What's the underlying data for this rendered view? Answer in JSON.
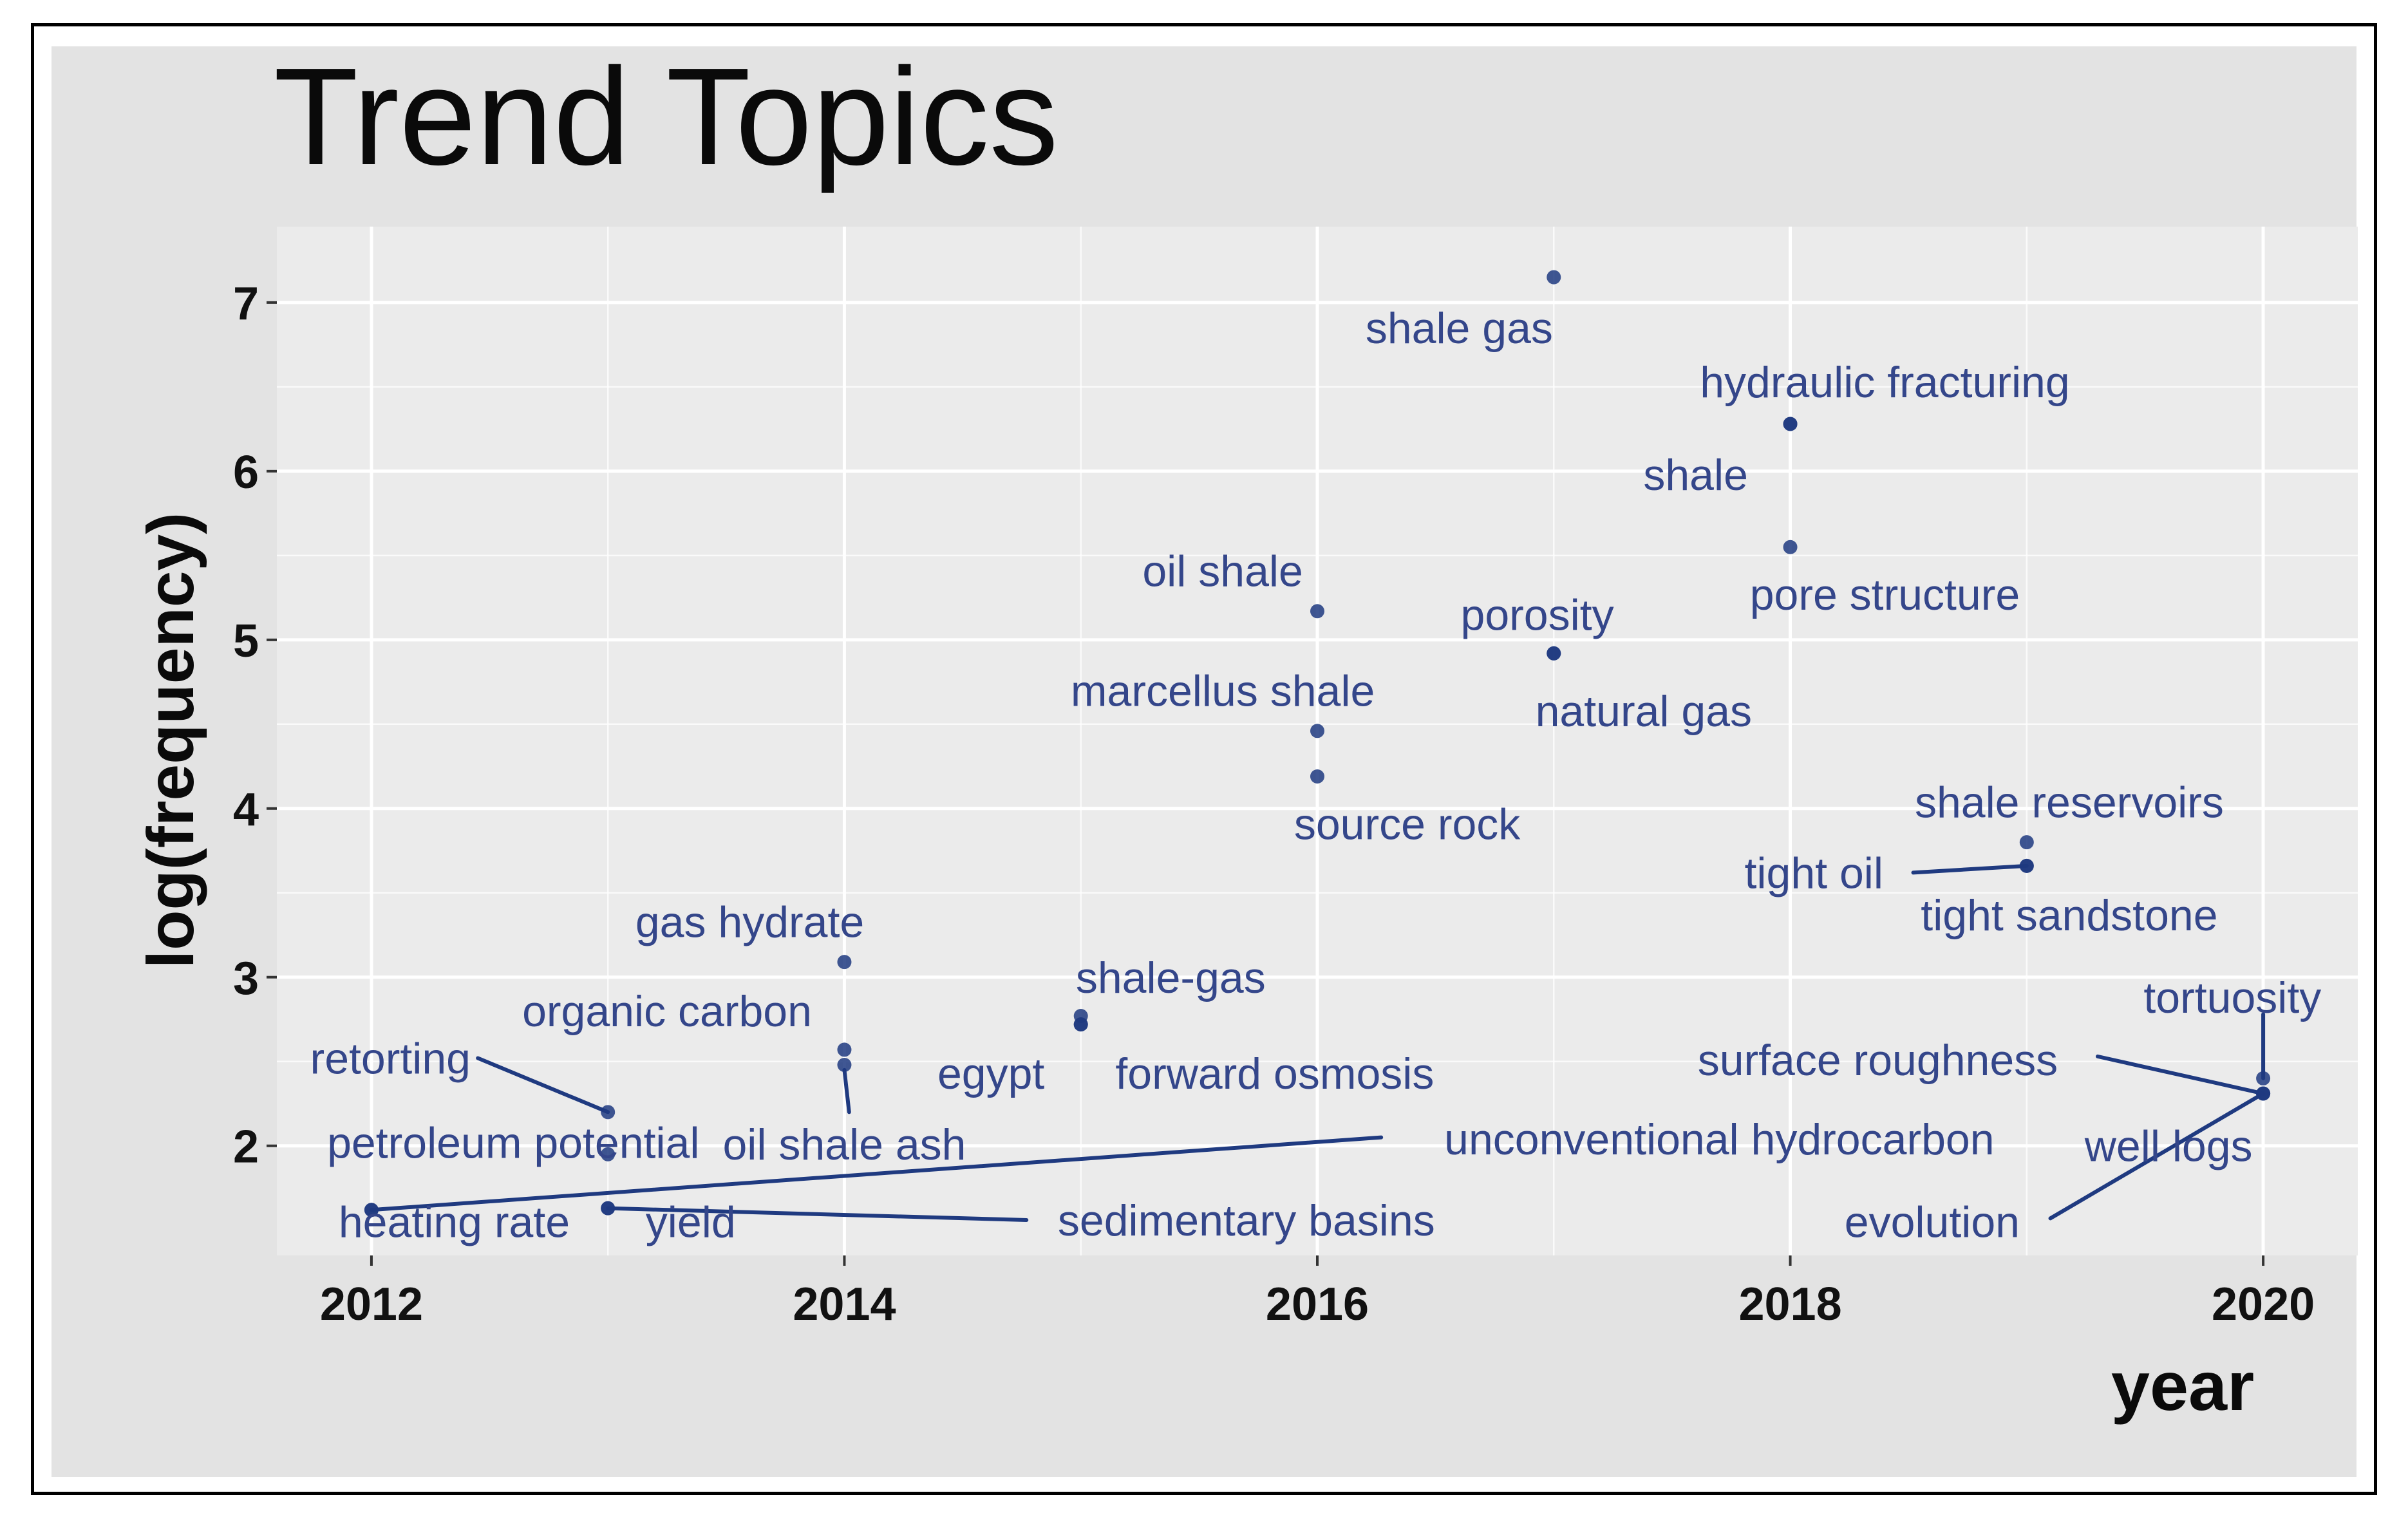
{
  "chart_data": {
    "type": "scatter",
    "title": "Trend Topics",
    "xlabel": "year",
    "ylabel": "log(frequency)",
    "xlim": [
      2011.6,
      2020.4
    ],
    "ylim": [
      1.35,
      7.45
    ],
    "x_ticks": [
      {
        "value": 2012,
        "label": "2012"
      },
      {
        "value": 2014,
        "label": "2014"
      },
      {
        "value": 2016,
        "label": "2016"
      },
      {
        "value": 2018,
        "label": "2018"
      },
      {
        "value": 2020,
        "label": "2020"
      }
    ],
    "y_ticks": [
      {
        "value": 2,
        "label": "2"
      },
      {
        "value": 3,
        "label": "3"
      },
      {
        "value": 4,
        "label": "4"
      },
      {
        "value": 5,
        "label": "5"
      },
      {
        "value": 6,
        "label": "6"
      },
      {
        "value": 7,
        "label": "7"
      }
    ],
    "grid": true,
    "colors": {
      "point": "#1f3a80",
      "label": "#34468a",
      "panel": "#ebebeb",
      "background": "#e3e3e3",
      "grid": "#ffffff"
    },
    "points": [
      {
        "label": "shale gas",
        "x": 2017,
        "y": 7.15,
        "label_pos": {
          "x": 2016.6,
          "y": 6.85
        }
      },
      {
        "label": "hydraulic fracturing",
        "x": 2018,
        "y": 6.28,
        "label_pos": {
          "x": 2018.4,
          "y": 6.53
        }
      },
      {
        "label": "shale",
        "x": 2018,
        "y": 6.28,
        "label_pos": {
          "x": 2017.6,
          "y": 5.98
        }
      },
      {
        "label": "pore structure",
        "x": 2018,
        "y": 5.55,
        "label_pos": {
          "x": 2018.4,
          "y": 5.27
        }
      },
      {
        "label": "oil shale",
        "x": 2016,
        "y": 5.17,
        "label_pos": {
          "x": 2015.6,
          "y": 5.41
        }
      },
      {
        "label": "porosity",
        "x": 2017,
        "y": 4.92,
        "label_pos": {
          "x": 2016.93,
          "y": 5.15
        }
      },
      {
        "label": "natural gas",
        "x": 2017,
        "y": 4.92,
        "label_pos": {
          "x": 2017.38,
          "y": 4.58
        }
      },
      {
        "label": "marcellus shale",
        "x": 2016,
        "y": 4.46,
        "label_pos": {
          "x": 2015.6,
          "y": 4.7
        }
      },
      {
        "label": "source rock",
        "x": 2016,
        "y": 4.19,
        "label_pos": {
          "x": 2016.38,
          "y": 3.91
        }
      },
      {
        "label": "shale reservoirs",
        "x": 2019,
        "y": 3.8,
        "label_pos": {
          "x": 2019.18,
          "y": 4.04
        }
      },
      {
        "label": "tight oil",
        "x": 2019,
        "y": 3.66,
        "label_pos": {
          "x": 2018.1,
          "y": 3.62
        }
      },
      {
        "label": "tight sandstone",
        "x": 2019,
        "y": 3.66,
        "label_pos": {
          "x": 2019.18,
          "y": 3.37
        }
      },
      {
        "label": "gas hydrate",
        "x": 2014,
        "y": 3.09,
        "label_pos": {
          "x": 2013.6,
          "y": 3.33
        }
      },
      {
        "label": "shale-gas",
        "x": 2015,
        "y": 2.77,
        "label_pos": {
          "x": 2015.38,
          "y": 3.0
        }
      },
      {
        "label": "egypt",
        "x": 2015,
        "y": 2.72,
        "label_pos": {
          "x": 2014.62,
          "y": 2.43
        }
      },
      {
        "label": "forward osmosis",
        "x": 2015,
        "y": 2.72,
        "label_pos": {
          "x": 2015.82,
          "y": 2.43
        }
      },
      {
        "label": "organic carbon",
        "x": 2014,
        "y": 2.57,
        "label_pos": {
          "x": 2013.25,
          "y": 2.8
        }
      },
      {
        "label": "oil shale ash",
        "x": 2014,
        "y": 2.48,
        "label_pos": {
          "x": 2014.0,
          "y": 2.01
        }
      },
      {
        "label": "retorting",
        "x": 2013,
        "y": 2.2,
        "label_pos": {
          "x": 2012.08,
          "y": 2.52
        }
      },
      {
        "label": "petroleum potential",
        "x": 2013,
        "y": 1.95,
        "label_pos": {
          "x": 2012.6,
          "y": 2.02
        }
      },
      {
        "label": "unconventional hydrocarbon",
        "x": 2012,
        "y": 1.62,
        "label_pos": {
          "x": 2017.7,
          "y": 2.04
        }
      },
      {
        "label": "heating rate",
        "x": 2012,
        "y": 1.62,
        "label_pos": {
          "x": 2012.35,
          "y": 1.55
        }
      },
      {
        "label": "yield",
        "x": 2013,
        "y": 1.63,
        "label_pos": {
          "x": 2013.35,
          "y": 1.55
        }
      },
      {
        "label": "sedimentary basins",
        "x": 2013,
        "y": 1.63,
        "label_pos": {
          "x": 2015.7,
          "y": 1.56
        }
      },
      {
        "label": "tortuosity",
        "x": 2020,
        "y": 2.4,
        "label_pos": {
          "x": 2019.87,
          "y": 2.88
        }
      },
      {
        "label": "surface roughness",
        "x": 2020,
        "y": 2.31,
        "label_pos": {
          "x": 2018.37,
          "y": 2.51
        }
      },
      {
        "label": "well logs",
        "x": 2020,
        "y": 2.31,
        "label_pos": {
          "x": 2019.6,
          "y": 2.0
        }
      },
      {
        "label": "evolution",
        "x": 2020,
        "y": 2.31,
        "label_pos": {
          "x": 2018.6,
          "y": 1.55
        }
      }
    ],
    "leader_lines": [
      {
        "from": "retorting",
        "x1": 2012.45,
        "y1": 2.52,
        "x2": 2013,
        "y2": 2.2
      },
      {
        "from": "unconventional hydrocarbon",
        "x1": 2016.27,
        "y1": 2.05,
        "x2": 2012,
        "y2": 1.62
      },
      {
        "from": "sedimentary basins",
        "x1": 2014.77,
        "y1": 1.56,
        "x2": 2013,
        "y2": 1.63
      },
      {
        "from": "oil shale ash",
        "x1": 2014.02,
        "y1": 2.2,
        "x2": 2014.0,
        "y2": 2.45
      },
      {
        "from": "tight oil",
        "x1": 2018.52,
        "y1": 3.62,
        "x2": 2019,
        "y2": 3.66
      },
      {
        "from": "surface roughness",
        "x1": 2019.3,
        "y1": 2.53,
        "x2": 2020,
        "y2": 2.31
      },
      {
        "from": "evolution",
        "x1": 2019.1,
        "y1": 1.57,
        "x2": 2020,
        "y2": 2.31
      },
      {
        "from": "tortuosity",
        "x1": 2020,
        "y1": 2.78,
        "x2": 2020,
        "y2": 2.4
      }
    ]
  }
}
